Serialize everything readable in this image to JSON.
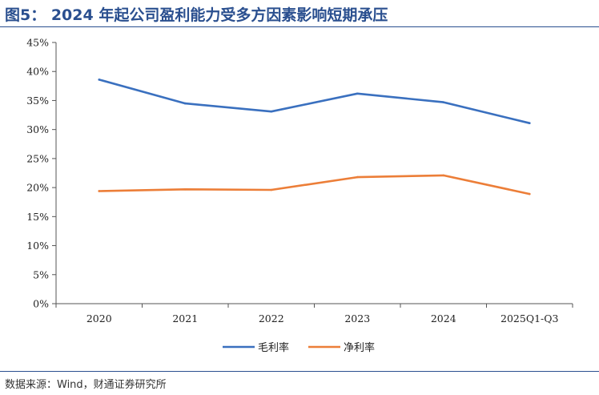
{
  "title": "图5： 2024 年起公司盈利能力受多方因素影响短期承压",
  "source": "数据来源：Wind，财通证券研究所",
  "colors": {
    "title": "#2a4f8f",
    "gross_margin": "#3a70bf",
    "net_margin": "#ec7e38",
    "axis": "#555555"
  },
  "chart_data": {
    "type": "line",
    "title": "",
    "xlabel": "",
    "ylabel": "",
    "categories": [
      "2020",
      "2021",
      "2022",
      "2023",
      "2024",
      "2025Q1-Q3"
    ],
    "ylim": [
      0,
      45
    ],
    "y_ticks": [
      "0%",
      "5%",
      "10%",
      "15%",
      "20%",
      "25%",
      "30%",
      "35%",
      "40%",
      "45%"
    ],
    "grid": false,
    "legend_position": "bottom",
    "series": [
      {
        "name": "毛利率",
        "color": "#3a70bf",
        "values": [
          38.6,
          34.5,
          33.1,
          36.2,
          34.7,
          31.1
        ]
      },
      {
        "name": "净利率",
        "color": "#ec7e38",
        "values": [
          19.4,
          19.7,
          19.6,
          21.8,
          22.1,
          18.9
        ]
      }
    ]
  }
}
